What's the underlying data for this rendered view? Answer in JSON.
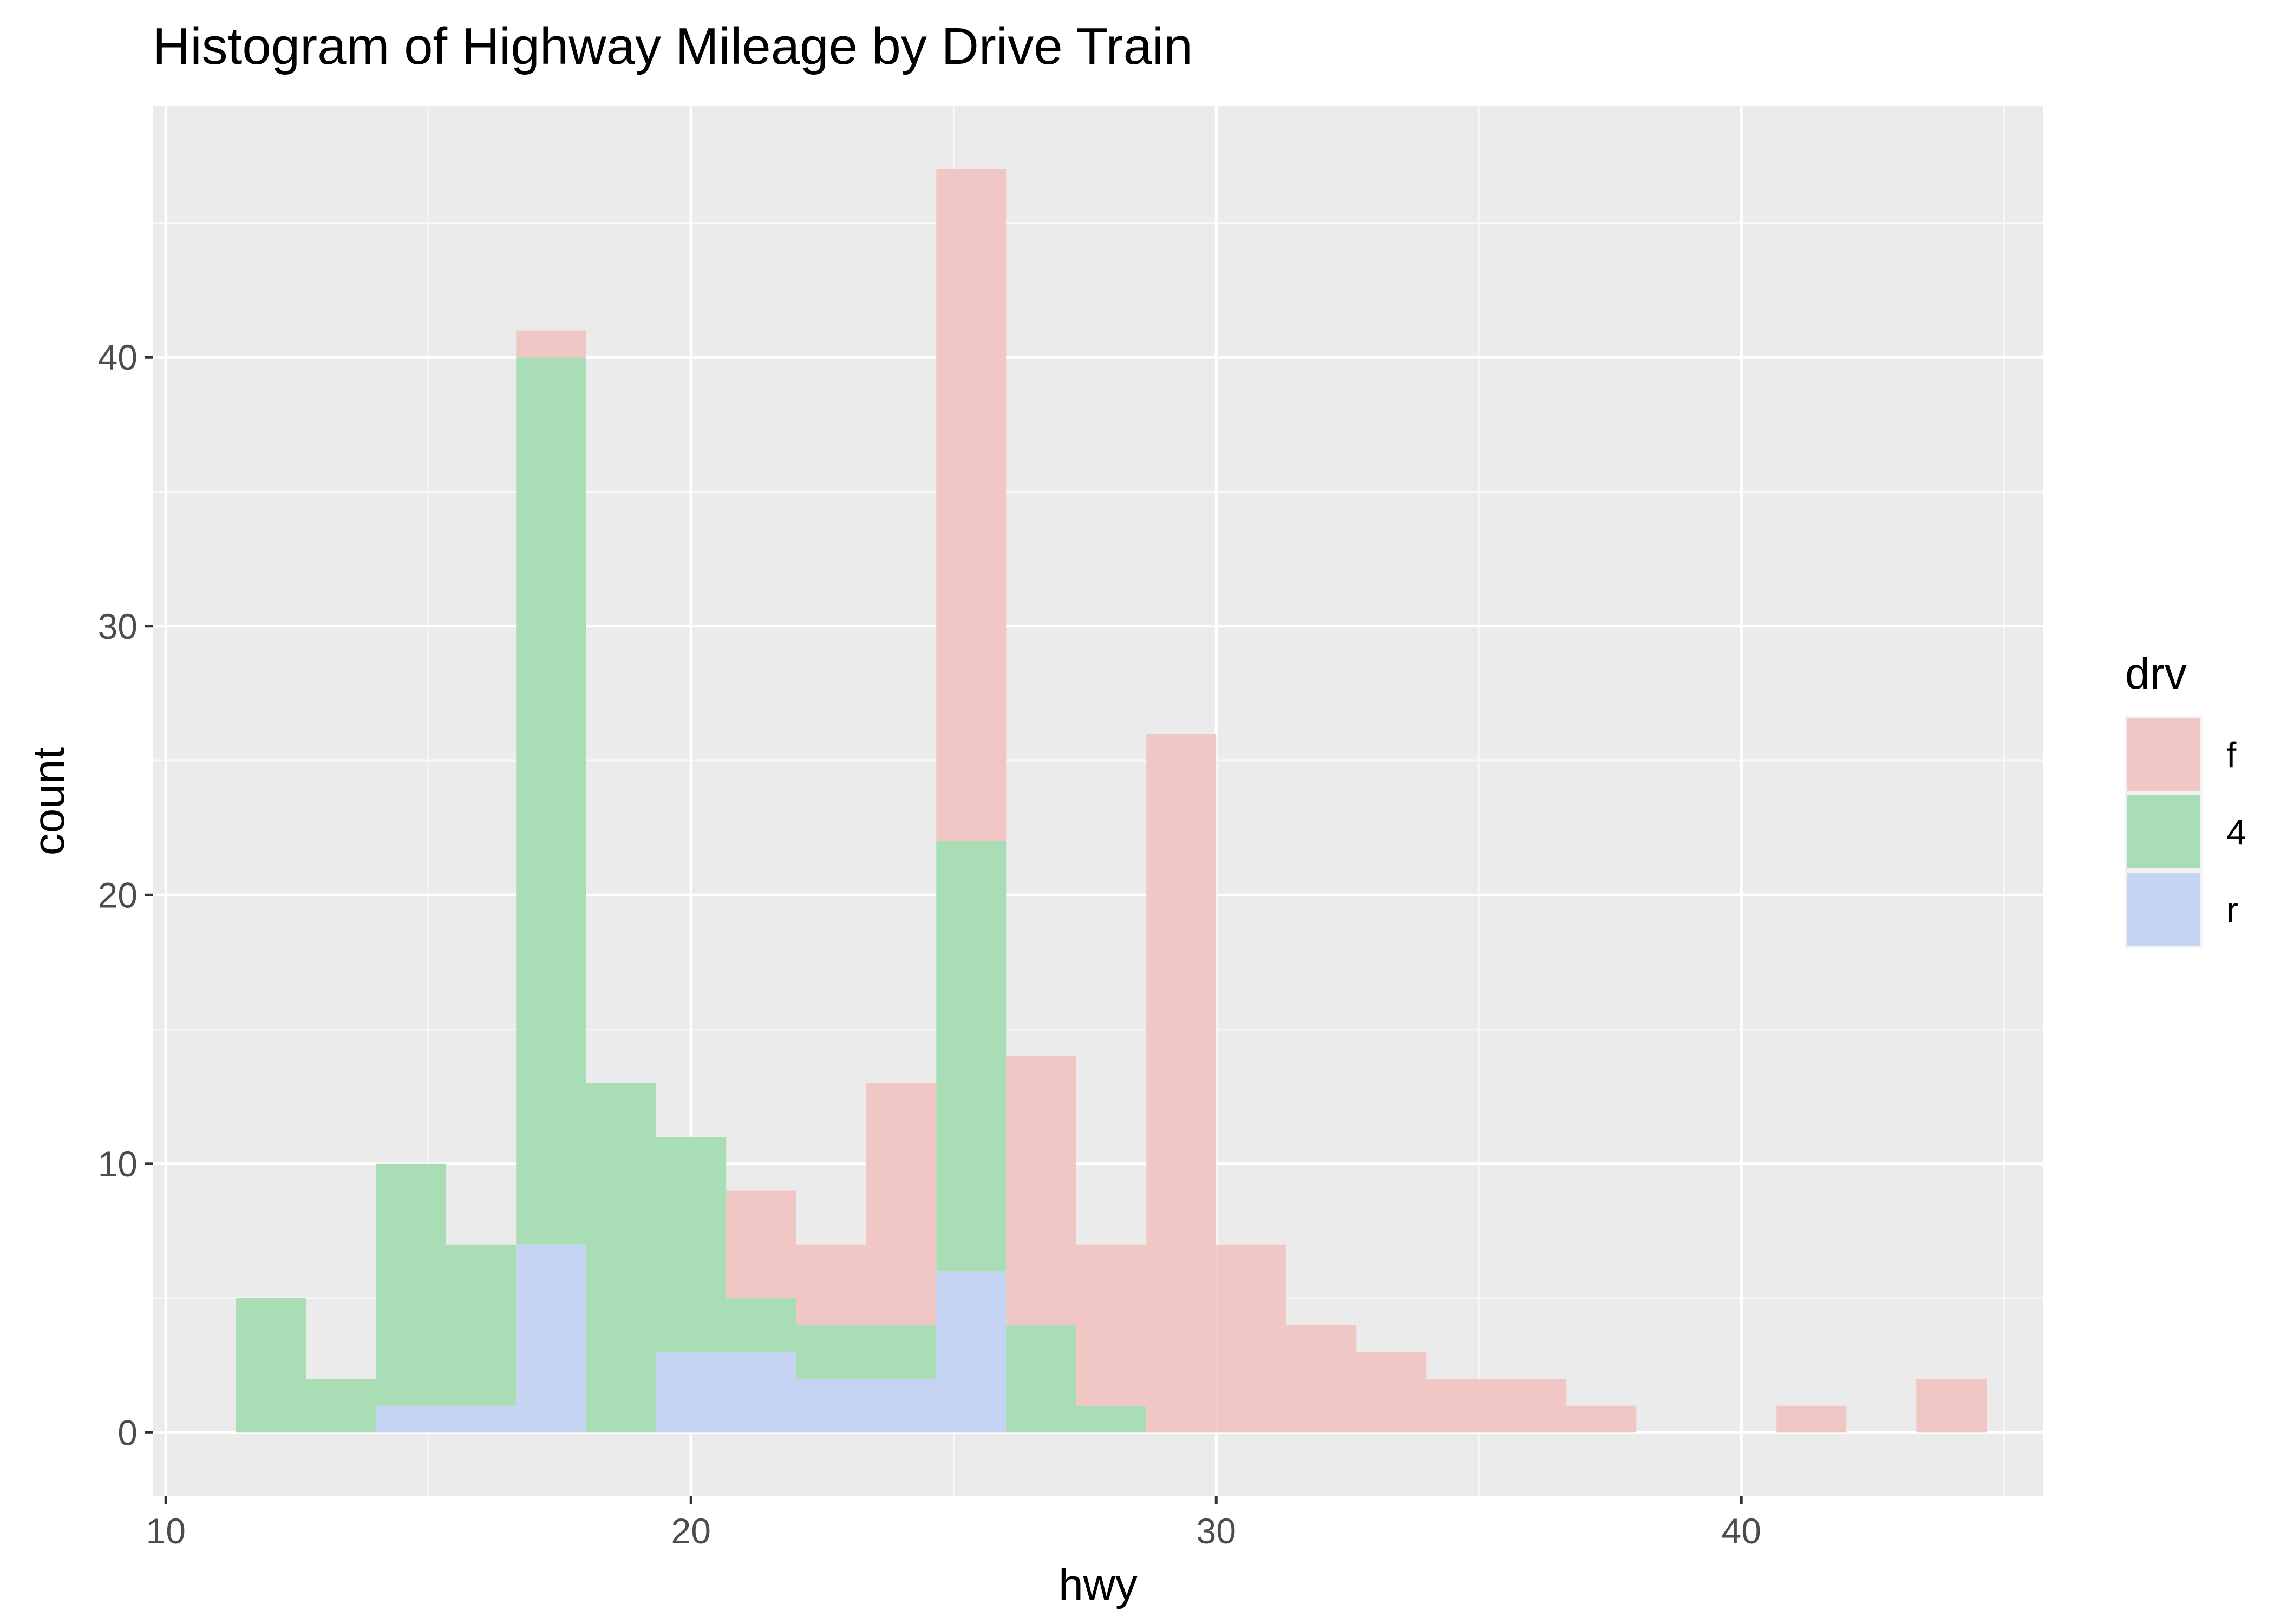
{
  "chart_data": {
    "type": "bar",
    "subtype": "stacked-histogram",
    "title": "Histogram of Highway Mileage by Drive Train",
    "xlabel": "hwy",
    "ylabel": "count",
    "xlim": [
      9.75,
      45.75
    ],
    "ylim": [
      -2.35,
      49.35
    ],
    "x_ticks": [
      10,
      20,
      30,
      40
    ],
    "y_ticks": [
      0,
      10,
      20,
      30,
      40
    ],
    "grid": true,
    "legend": {
      "title": "drv",
      "position": "right"
    },
    "bin_width": 1.3333,
    "bins": [
      {
        "x0": 11.33,
        "x1": 12.67
      },
      {
        "x0": 12.67,
        "x1": 14.0
      },
      {
        "x0": 14.0,
        "x1": 15.33
      },
      {
        "x0": 15.33,
        "x1": 16.67
      },
      {
        "x0": 16.67,
        "x1": 18.0
      },
      {
        "x0": 18.0,
        "x1": 19.33
      },
      {
        "x0": 19.33,
        "x1": 20.67
      },
      {
        "x0": 20.67,
        "x1": 22.0
      },
      {
        "x0": 22.0,
        "x1": 23.33
      },
      {
        "x0": 23.33,
        "x1": 24.67
      },
      {
        "x0": 24.67,
        "x1": 26.0
      },
      {
        "x0": 26.0,
        "x1": 27.33
      },
      {
        "x0": 27.33,
        "x1": 28.67
      },
      {
        "x0": 28.67,
        "x1": 30.0
      },
      {
        "x0": 30.0,
        "x1": 31.33
      },
      {
        "x0": 31.33,
        "x1": 32.67
      },
      {
        "x0": 32.67,
        "x1": 34.0
      },
      {
        "x0": 34.0,
        "x1": 35.33
      },
      {
        "x0": 35.33,
        "x1": 36.67
      },
      {
        "x0": 36.67,
        "x1": 38.0
      },
      {
        "x0": 38.0,
        "x1": 39.33
      },
      {
        "x0": 39.33,
        "x1": 40.67
      },
      {
        "x0": 40.67,
        "x1": 42.0
      },
      {
        "x0": 42.0,
        "x1": 43.33
      },
      {
        "x0": 43.33,
        "x1": 44.67
      }
    ],
    "series": [
      {
        "name": "r",
        "color": "#c5d4f2",
        "values": [
          0,
          0,
          1,
          1,
          7,
          0,
          3,
          3,
          2,
          2,
          6,
          0,
          0,
          0,
          0,
          0,
          0,
          0,
          0,
          0,
          0,
          0,
          0,
          0,
          0
        ]
      },
      {
        "name": "4",
        "color": "#a8ddb5",
        "values": [
          5,
          2,
          9,
          6,
          33,
          13,
          8,
          2,
          2,
          2,
          16,
          4,
          1,
          0,
          0,
          0,
          0,
          0,
          0,
          0,
          0,
          0,
          0,
          0,
          0
        ]
      },
      {
        "name": "f",
        "color": "#f0c7c4",
        "values": [
          0,
          0,
          0,
          0,
          1,
          0,
          0,
          4,
          3,
          9,
          25,
          10,
          6,
          26,
          7,
          4,
          3,
          2,
          2,
          1,
          0,
          0,
          1,
          0,
          2
        ]
      }
    ],
    "legend_order": [
      "f",
      "4",
      "r"
    ]
  }
}
